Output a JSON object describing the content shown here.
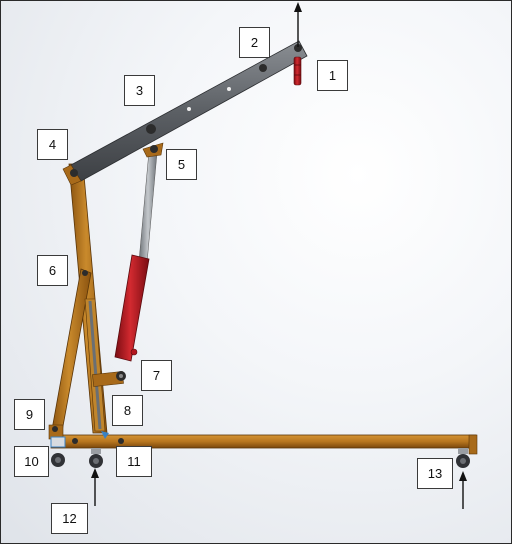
{
  "callouts": [
    {
      "id": "1",
      "label": "1"
    },
    {
      "id": "2",
      "label": "2"
    },
    {
      "id": "3",
      "label": "3"
    },
    {
      "id": "4",
      "label": "4"
    },
    {
      "id": "5",
      "label": "5"
    },
    {
      "id": "6",
      "label": "6"
    },
    {
      "id": "7",
      "label": "7"
    },
    {
      "id": "8",
      "label": "8"
    },
    {
      "id": "9",
      "label": "9"
    },
    {
      "id": "10",
      "label": "10"
    },
    {
      "id": "11",
      "label": "11"
    },
    {
      "id": "12",
      "label": "12"
    },
    {
      "id": "13",
      "label": "13"
    }
  ],
  "colors": {
    "frame_orange": "#b8761f",
    "boom_grey": "#6f7378",
    "cylinder_red": "#b3171f",
    "rod_grey": "#9ea3a8",
    "wheel_dark": "#303236",
    "arrow": "#111111"
  },
  "icons": {
    "load_arrow": "up-arrow",
    "support_arrow": "up-arrow"
  }
}
